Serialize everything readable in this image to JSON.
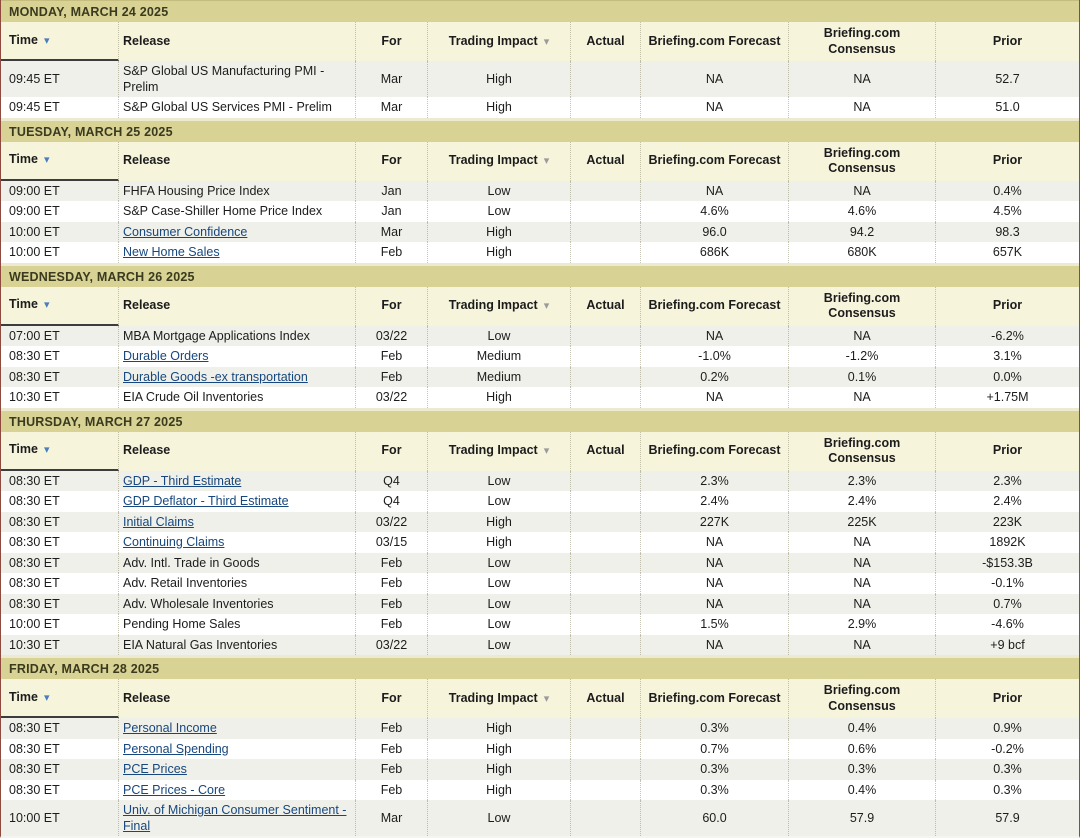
{
  "columns": [
    {
      "id": "time",
      "label": "Time",
      "align": "left",
      "icon": "sort-desc",
      "sortable": true
    },
    {
      "id": "release",
      "label": "Release",
      "align": "left",
      "sortable": false
    },
    {
      "id": "for",
      "label": "For",
      "align": "center",
      "sortable": false
    },
    {
      "id": "impact",
      "label": "Trading Impact",
      "align": "center",
      "icon": "dropdown",
      "sortable": true
    },
    {
      "id": "actual",
      "label": "Actual",
      "align": "center",
      "sortable": false
    },
    {
      "id": "forecast",
      "label": "Briefing.com Forecast",
      "align": "center",
      "sortable": false
    },
    {
      "id": "consensus",
      "label": "Briefing.com Consensus",
      "align": "center",
      "sortable": false
    },
    {
      "id": "prior",
      "label": "Prior",
      "align": "center",
      "sortable": false
    }
  ],
  "colors": {
    "day_band": "#d9d295",
    "header_row": "#f7f4dc",
    "alt_row": "#f0f0ea",
    "link": "#17477e",
    "sort_arrow": "#4a7ebb",
    "dropdown_arrow": "#9a9a9a"
  },
  "sections": [
    {
      "day_label": "MONDAY, MARCH 24 2025",
      "rows": [
        {
          "time": "09:45 ET",
          "release": "S&P Global US Manufacturing PMI - Prelim",
          "linked": false,
          "for": "Mar",
          "impact": "High",
          "actual": "",
          "forecast": "NA",
          "consensus": "NA",
          "prior": "52.7"
        },
        {
          "time": "09:45 ET",
          "release": "S&P Global US Services PMI - Prelim",
          "linked": false,
          "for": "Mar",
          "impact": "High",
          "actual": "",
          "forecast": "NA",
          "consensus": "NA",
          "prior": "51.0"
        }
      ]
    },
    {
      "day_label": "TUESDAY, MARCH 25 2025",
      "rows": [
        {
          "time": "09:00 ET",
          "release": "FHFA Housing Price Index",
          "linked": false,
          "for": "Jan",
          "impact": "Low",
          "actual": "",
          "forecast": "NA",
          "consensus": "NA",
          "prior": "0.4%"
        },
        {
          "time": "09:00 ET",
          "release": "S&P Case-Shiller Home Price Index",
          "linked": false,
          "for": "Jan",
          "impact": "Low",
          "actual": "",
          "forecast": "4.6%",
          "consensus": "4.6%",
          "prior": "4.5%"
        },
        {
          "time": "10:00 ET",
          "release": "Consumer Confidence",
          "linked": true,
          "for": "Mar",
          "impact": "High",
          "actual": "",
          "forecast": "96.0",
          "consensus": "94.2",
          "prior": "98.3"
        },
        {
          "time": "10:00 ET",
          "release": "New Home Sales",
          "linked": true,
          "for": "Feb",
          "impact": "High",
          "actual": "",
          "forecast": "686K",
          "consensus": "680K",
          "prior": "657K"
        }
      ]
    },
    {
      "day_label": "WEDNESDAY, MARCH 26 2025",
      "rows": [
        {
          "time": "07:00 ET",
          "release": "MBA Mortgage Applications Index",
          "linked": false,
          "for": "03/22",
          "impact": "Low",
          "actual": "",
          "forecast": "NA",
          "consensus": "NA",
          "prior": "-6.2%"
        },
        {
          "time": "08:30 ET",
          "release": "Durable Orders",
          "linked": true,
          "for": "Feb",
          "impact": "Medium",
          "actual": "",
          "forecast": "-1.0%",
          "consensus": "-1.2%",
          "prior": "3.1%"
        },
        {
          "time": "08:30 ET",
          "release": "Durable Goods -ex transportation",
          "linked": true,
          "for": "Feb",
          "impact": "Medium",
          "actual": "",
          "forecast": "0.2%",
          "consensus": "0.1%",
          "prior": "0.0%"
        },
        {
          "time": "10:30 ET",
          "release": "EIA Crude Oil Inventories",
          "linked": false,
          "for": "03/22",
          "impact": "High",
          "actual": "",
          "forecast": "NA",
          "consensus": "NA",
          "prior": "+1.75M"
        }
      ]
    },
    {
      "day_label": "THURSDAY, MARCH 27 2025",
      "rows": [
        {
          "time": "08:30 ET",
          "release": "GDP - Third Estimate",
          "linked": true,
          "for": "Q4",
          "impact": "Low",
          "actual": "",
          "forecast": "2.3%",
          "consensus": "2.3%",
          "prior": "2.3%"
        },
        {
          "time": "08:30 ET",
          "release": "GDP Deflator - Third Estimate",
          "linked": true,
          "for": "Q4",
          "impact": "Low",
          "actual": "",
          "forecast": "2.4%",
          "consensus": "2.4%",
          "prior": "2.4%"
        },
        {
          "time": "08:30 ET",
          "release": "Initial Claims",
          "linked": true,
          "for": "03/22",
          "impact": "High",
          "actual": "",
          "forecast": "227K",
          "consensus": "225K",
          "prior": "223K"
        },
        {
          "time": "08:30 ET",
          "release": "Continuing Claims",
          "linked": true,
          "for": "03/15",
          "impact": "High",
          "actual": "",
          "forecast": "NA",
          "consensus": "NA",
          "prior": "1892K"
        },
        {
          "time": "08:30 ET",
          "release": "Adv. Intl. Trade in Goods",
          "linked": false,
          "for": "Feb",
          "impact": "Low",
          "actual": "",
          "forecast": "NA",
          "consensus": "NA",
          "prior": "-$153.3B"
        },
        {
          "time": "08:30 ET",
          "release": "Adv. Retail Inventories",
          "linked": false,
          "for": "Feb",
          "impact": "Low",
          "actual": "",
          "forecast": "NA",
          "consensus": "NA",
          "prior": "-0.1%"
        },
        {
          "time": "08:30 ET",
          "release": "Adv. Wholesale Inventories",
          "linked": false,
          "for": "Feb",
          "impact": "Low",
          "actual": "",
          "forecast": "NA",
          "consensus": "NA",
          "prior": "0.7%"
        },
        {
          "time": "10:00 ET",
          "release": "Pending Home Sales",
          "linked": false,
          "for": "Feb",
          "impact": "Low",
          "actual": "",
          "forecast": "1.5%",
          "consensus": "2.9%",
          "prior": "-4.6%"
        },
        {
          "time": "10:30 ET",
          "release": "EIA Natural Gas Inventories",
          "linked": false,
          "for": "03/22",
          "impact": "Low",
          "actual": "",
          "forecast": "NA",
          "consensus": "NA",
          "prior": "+9 bcf"
        }
      ]
    },
    {
      "day_label": "FRIDAY, MARCH 28 2025",
      "rows": [
        {
          "time": "08:30 ET",
          "release": "Personal Income",
          "linked": true,
          "for": "Feb",
          "impact": "High",
          "actual": "",
          "forecast": "0.3%",
          "consensus": "0.4%",
          "prior": "0.9%"
        },
        {
          "time": "08:30 ET",
          "release": "Personal Spending",
          "linked": true,
          "for": "Feb",
          "impact": "High",
          "actual": "",
          "forecast": "0.7%",
          "consensus": "0.6%",
          "prior": "-0.2%"
        },
        {
          "time": "08:30 ET",
          "release": "PCE Prices",
          "linked": true,
          "for": "Feb",
          "impact": "High",
          "actual": "",
          "forecast": "0.3%",
          "consensus": "0.3%",
          "prior": "0.3%"
        },
        {
          "time": "08:30 ET",
          "release": "PCE Prices - Core",
          "linked": true,
          "for": "Feb",
          "impact": "High",
          "actual": "",
          "forecast": "0.3%",
          "consensus": "0.4%",
          "prior": "0.3%"
        },
        {
          "time": "10:00 ET",
          "release": "Univ. of Michigan Consumer Sentiment - Final",
          "linked": true,
          "for": "Mar",
          "impact": "Low",
          "actual": "",
          "forecast": "60.0",
          "consensus": "57.9",
          "prior": "57.9"
        }
      ]
    }
  ],
  "icons": {
    "sort_desc": "▾",
    "dropdown": "▾"
  }
}
